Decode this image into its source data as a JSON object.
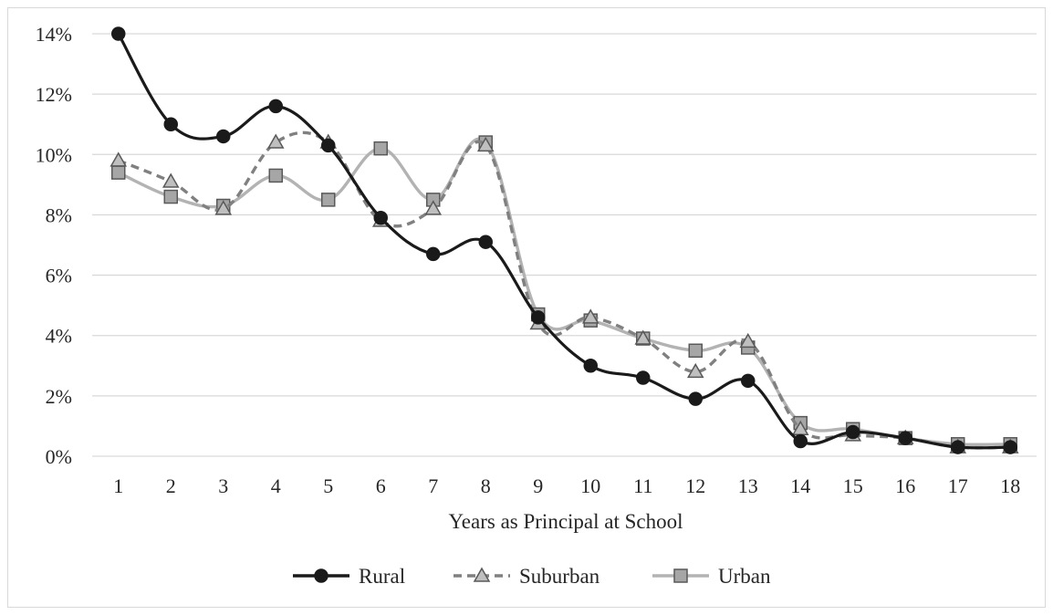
{
  "chart_data": {
    "type": "line",
    "title": "",
    "xlabel": "Years as Principal at School",
    "ylabel": "",
    "categories": [
      "1",
      "2",
      "3",
      "4",
      "5",
      "6",
      "7",
      "8",
      "9",
      "10",
      "11",
      "12",
      "13",
      "14",
      "15",
      "16",
      "17",
      "18"
    ],
    "ylim": [
      0,
      14
    ],
    "yticks": [
      0,
      2,
      4,
      6,
      8,
      10,
      12,
      14
    ],
    "ytick_labels": [
      "0%",
      "2%",
      "4%",
      "6%",
      "8%",
      "10%",
      "12%",
      "14%"
    ],
    "grid": true,
    "legend_position": "bottom",
    "series": [
      {
        "name": "Rural",
        "marker": "circle",
        "color": "#1a1a1a",
        "fill": "#1a1a1a",
        "dash": "",
        "values": [
          14.0,
          11.0,
          10.6,
          11.6,
          10.3,
          7.9,
          6.7,
          7.1,
          4.6,
          3.0,
          2.6,
          1.9,
          2.5,
          0.5,
          0.8,
          0.6,
          0.3,
          0.3
        ]
      },
      {
        "name": "Suburban",
        "marker": "triangle",
        "color": "#808080",
        "fill": "#bfbfbf",
        "dash": "9 6",
        "values": [
          9.8,
          9.1,
          8.2,
          10.4,
          10.4,
          7.8,
          8.2,
          10.3,
          4.4,
          4.6,
          3.9,
          2.8,
          3.8,
          0.9,
          0.7,
          0.6,
          0.3,
          0.3
        ]
      },
      {
        "name": "Urban",
        "marker": "square",
        "color": "#b3b3b3",
        "fill": "#a6a6a6",
        "dash": "",
        "values": [
          9.4,
          8.6,
          8.3,
          9.3,
          8.5,
          10.2,
          8.5,
          10.4,
          4.7,
          4.5,
          3.9,
          3.5,
          3.6,
          1.1,
          0.9,
          0.6,
          0.4,
          0.4
        ]
      }
    ]
  }
}
